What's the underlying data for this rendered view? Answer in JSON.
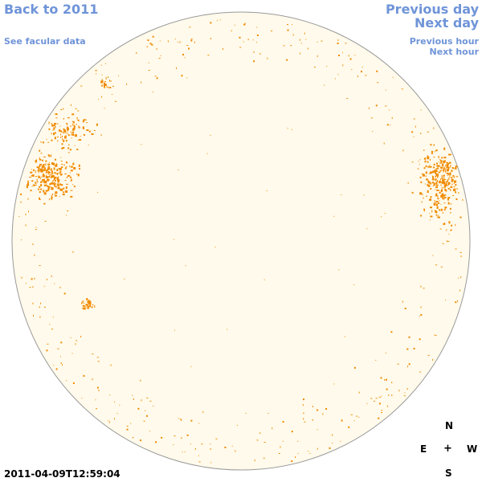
{
  "nav": {
    "back": "Back to 2011",
    "facular": "See facular data",
    "previous_day": "Previous day",
    "next_day": "Next day",
    "previous_hour": "Previous hour",
    "next_hour": "Next hour"
  },
  "timestamp": "2011-04-09T12:59:04",
  "compass": {
    "north": "N",
    "east": "E",
    "center": "+",
    "west": "W",
    "south": "S"
  },
  "colors": {
    "link": "#6f94d8",
    "disk_fill": "#fffaeb",
    "disk_border": "#9a9a9a",
    "spot": "#f08a00"
  },
  "icons": {
    "solar_disk": "solar-disk-icon",
    "facula": "facula-spot-icon"
  }
}
